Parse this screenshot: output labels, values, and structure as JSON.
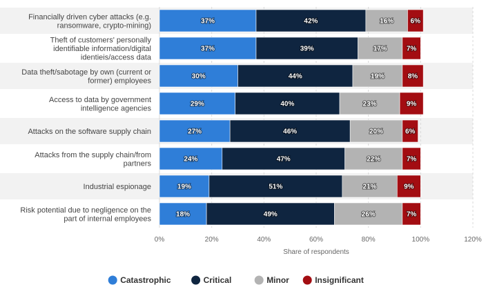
{
  "chart_data": {
    "type": "bar",
    "orientation": "horizontal",
    "stacked": true,
    "categories": [
      [
        "Financially driven cyber attacks (e.g.",
        "ransomware, crypto-mining)"
      ],
      [
        "Theft of customers' personally",
        "identifiable information/digital",
        "identieis/access data"
      ],
      [
        "Data theft/sabotage by own (current or",
        "former) employees"
      ],
      [
        "Access to data by government",
        "intelligence agencies"
      ],
      [
        "Attacks on the software supply chain"
      ],
      [
        "Attacks from the supply chain/from",
        "partners"
      ],
      [
        "Industrial espionage"
      ],
      [
        "Risk potential due to negligence on the",
        "part of internal employees"
      ]
    ],
    "series": [
      {
        "name": "Catastrophic",
        "color": "#2f7ed8",
        "values": [
          37,
          37,
          30,
          29,
          27,
          24,
          19,
          18
        ]
      },
      {
        "name": "Critical",
        "color": "#0f2540",
        "values": [
          42,
          39,
          44,
          40,
          46,
          47,
          51,
          49
        ]
      },
      {
        "name": "Minor",
        "color": "#b3b3b3",
        "values": [
          16,
          17,
          19,
          23,
          20,
          22,
          21,
          26
        ]
      },
      {
        "name": "Insignificant",
        "color": "#a30d12",
        "values": [
          6,
          7,
          8,
          9,
          6,
          7,
          9,
          7
        ]
      }
    ],
    "value_suffix": "%",
    "xlabel": "Share of respondents",
    "xlim": [
      0,
      120
    ],
    "xticks": [
      0,
      20,
      40,
      60,
      80,
      100,
      120
    ],
    "xtick_labels": [
      "0%",
      "20%",
      "40%",
      "60%",
      "80%",
      "100%",
      "120%"
    ],
    "grid": true,
    "legend_position": "bottom-center"
  },
  "colors": {
    "band": "#f2f2f2",
    "grid": "#d8d8d8"
  }
}
